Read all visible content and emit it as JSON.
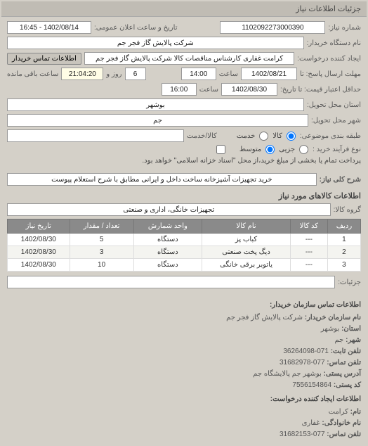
{
  "tabTitle": "جزئیات اطلاعات نیاز",
  "form": {
    "reqNoLabel": "شماره نیاز:",
    "reqNo": "1102092273000390",
    "pubDateLabel": "تاریخ و ساعت اعلان عمومی:",
    "pubDate": "1402/08/14 - 16:45",
    "buyerOrgLabel": "نام دستگاه خریدار:",
    "buyerOrg": "شرکت پالایش گاز فجر جم",
    "reqCreatorLabel": "ایجاد کننده درخواست:",
    "reqCreator": "کرامت غفاری کارشناس مناقصات کالا شرکت پالایش گاز فجر جم",
    "contactBtn": "اطلاعات تماس خریدار",
    "sendDeadlineLabel": "مهلت ارسال پاسخ: تا",
    "sendDeadlineDate": "1402/08/21",
    "timeLabel": "ساعت",
    "sendDeadlineTime": "14:00",
    "daysLeft": "6",
    "daysLeftLabel": "روز و",
    "timeLeft": "21:04:20",
    "timeLeftLabel": "ساعت باقی مانده",
    "validLabel": "حداقل اعتبار قیمت: تا تاریخ:",
    "validDate": "1402/08/30",
    "validTime": "16:00",
    "provinceLabel": "استان محل تحویل:",
    "province": "بوشهر",
    "cityLabel": "شهر محل تحویل:",
    "city": "جم",
    "catLabel": "طبقه بندی موضوعی:",
    "catKala": "کالا",
    "catKhadmat": "خدمت",
    "goodsLabel": "کالا/خدمت",
    "goodsVal": "",
    "buyTypeLabel": "نوع فرآیند خرید :",
    "radJozi": "جزیی",
    "radMoto": "متوسط",
    "chkNote": "پرداخت تمام یا بخشی از مبلغ خرید،از محل \"اسناد خزانه اسلامی\" خواهد بود.",
    "descLabel": "شرح کلی نیاز:",
    "desc": "خرید تجهیزات آشپزخانه ساخت داخل و ایرانی مطابق با شرح استعلام پیوست",
    "itemsHeader": "اطلاعات کالاهای مورد نیاز",
    "groupLabel": "گروه کالا:",
    "group": "تجهیزات خانگی، اداری و صنعتی"
  },
  "table": {
    "headers": {
      "row": "ردیف",
      "code": "کد کالا",
      "name": "نام کالا",
      "unit": "واحد شمارش",
      "qty": "تعداد / مقدار",
      "date": "تاریخ نیاز"
    },
    "rows": [
      {
        "row": "1",
        "code": "---",
        "name": "کباب پز",
        "unit": "دستگاه",
        "qty": "5",
        "date": "1402/08/30"
      },
      {
        "row": "2",
        "code": "---",
        "name": "دیگ پخت صنعتی",
        "unit": "دستگاه",
        "qty": "3",
        "date": "1402/08/30"
      },
      {
        "row": "3",
        "code": "---",
        "name": "یاتوبر برقی خانگی",
        "unit": "دستگاه",
        "qty": "10",
        "date": "1402/08/30"
      }
    ]
  },
  "list": {
    "listLabel": "جزئیات:",
    "listVal": ""
  },
  "contact": {
    "hdr1": "اطلاعات تماس سازمان خریدار:",
    "orgLbl": "نام سازمان خریدار:",
    "org": "شرکت پالایش گاز فجر جم",
    "provLbl": "استان:",
    "prov": "بوشهر",
    "cityLbl": "شهر:",
    "city": "جم",
    "telLbl": "تلفن ثابت:",
    "tel": "071-36264098",
    "faxLbl": "تلفن تماس:",
    "fax": "077-31682978",
    "addrLbl": "آدرس پستی:",
    "addr": "بوشهر جم پالایشگاه جم",
    "postLbl": "کد پستی:",
    "post": "7556154864",
    "hdr2": "اطلاعات ایجاد کننده درخواست:",
    "nameLbl": "نام:",
    "name": "کرامت",
    "famLbl": "نام خانوادگی:",
    "fam": "غفاری",
    "telcLbl": "تلفن تماس:",
    "telc": "077-31682153"
  }
}
